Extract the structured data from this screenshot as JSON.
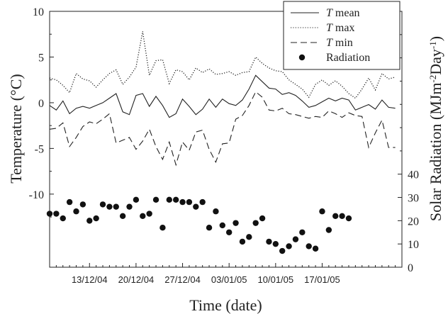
{
  "chart_data": {
    "type": "line",
    "xlabel": "Time (date)",
    "ylabel": "Temperature (°C)",
    "y2label_parts": [
      "Solar Radiation (MJm",
      "-2",
      "Day",
      "-1",
      ")"
    ],
    "ylim": [
      -18,
      10
    ],
    "yticks": [
      10,
      5,
      0,
      -5,
      -10
    ],
    "y2lim": [
      0,
      110
    ],
    "y2ticks": [
      0,
      10,
      20,
      30,
      40
    ],
    "x_day_range": [
      0,
      53
    ],
    "x_tick_days": [
      6,
      13,
      20,
      27,
      34,
      41
    ],
    "x_tick_labels": [
      "13/12/04",
      "20/12/04",
      "27/12/04",
      "03/01/05",
      "10/01/05",
      "17/01/05"
    ],
    "legend": {
      "position": "top-right",
      "entries": [
        {
          "sym": "T",
          "label": " mean",
          "style": "solid"
        },
        {
          "sym": "T",
          "label": " max",
          "style": "dotted"
        },
        {
          "sym": "T",
          "label": " min",
          "style": "dashed"
        },
        {
          "sym": "",
          "label": "Radiation",
          "style": "marker"
        }
      ]
    },
    "series": [
      {
        "name": "T mean",
        "style": "solid",
        "values": [
          -0.3,
          -0.8,
          0.2,
          -1.2,
          -0.6,
          -0.4,
          -0.6,
          -0.3,
          0.0,
          0.5,
          1.0,
          -1.0,
          -1.3,
          0.8,
          1.0,
          -0.4,
          0.7,
          -0.3,
          -1.6,
          -1.2,
          0.4,
          -0.4,
          -1.3,
          -0.7,
          0.4,
          -0.5,
          0.4,
          -0.1,
          -0.3,
          0.3,
          1.5,
          3.0,
          2.3,
          1.6,
          1.5,
          0.9,
          1.1,
          0.8,
          0.2,
          -0.5,
          -0.3,
          0.1,
          0.5,
          0.2,
          0.5,
          0.3,
          -0.8,
          -0.5,
          -0.2,
          -0.7,
          0.3,
          -0.5,
          -0.6
        ]
      },
      {
        "name": "T max",
        "style": "dotted",
        "values": [
          2.7,
          2.5,
          1.9,
          1.1,
          3.2,
          2.6,
          2.4,
          1.7,
          2.5,
          3.2,
          3.6,
          2.0,
          2.8,
          3.9,
          7.8,
          3.0,
          4.6,
          4.7,
          2.1,
          3.6,
          3.4,
          2.5,
          3.8,
          3.3,
          3.7,
          3.1,
          3.2,
          3.4,
          3.0,
          3.3,
          3.4,
          5.0,
          4.3,
          3.8,
          3.5,
          3.4,
          2.5,
          2.0,
          1.5,
          0.6,
          2.0,
          2.5,
          1.9,
          2.4,
          1.8,
          1.0,
          0.5,
          1.5,
          2.7,
          1.4,
          3.2,
          2.6,
          2.8
        ]
      },
      {
        "name": "T min",
        "style": "dashed",
        "values": [
          -2.9,
          -2.8,
          -2.2,
          -4.8,
          -3.8,
          -2.6,
          -2.1,
          -2.3,
          -1.8,
          -1.2,
          -4.4,
          -4.1,
          -3.8,
          -5.1,
          -4.2,
          -2.9,
          -4.8,
          -6.2,
          -4.3,
          -6.8,
          -4.3,
          -5.2,
          -3.2,
          -3.0,
          -5.1,
          -6.5,
          -4.5,
          -4.4,
          -1.8,
          -1.4,
          -0.3,
          1.2,
          0.6,
          -0.8,
          -0.9,
          -0.6,
          -1.2,
          -1.3,
          -1.5,
          -1.7,
          -1.5,
          -1.6,
          -0.9,
          -1.2,
          -1.6,
          -1.1,
          -1.4,
          -1.5,
          -4.9,
          -3.3,
          -1.9,
          -4.9,
          -4.9
        ]
      },
      {
        "name": "Radiation",
        "style": "marker",
        "axis": "right",
        "values": [
          23,
          23,
          21,
          28,
          24,
          27,
          20,
          21,
          27,
          26,
          26,
          22,
          26,
          29,
          22,
          23,
          29,
          17,
          29,
          29,
          28,
          28,
          26,
          28,
          17,
          24,
          18,
          15,
          19,
          11,
          13,
          19,
          21,
          11,
          10,
          7,
          9,
          12,
          15,
          9,
          8,
          24,
          16,
          22,
          22,
          21,
          null,
          null,
          null,
          null,
          null,
          null,
          null
        ]
      }
    ]
  }
}
